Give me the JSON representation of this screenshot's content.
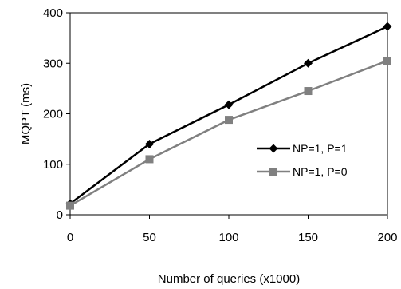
{
  "chart_data": {
    "type": "line",
    "title": "",
    "xlabel": "Number of queries (x1000)",
    "ylabel": "MQPT (ms)",
    "x": [
      0,
      50,
      100,
      150,
      200
    ],
    "xlim": [
      0,
      200
    ],
    "ylim": [
      0,
      400
    ],
    "xticks": [
      "0",
      "50",
      "100",
      "150",
      "200"
    ],
    "yticks": [
      "0",
      "100",
      "200",
      "300",
      "400"
    ],
    "grid": false,
    "legend_position": "right",
    "series": [
      {
        "name": "NP=1, P=1",
        "values": [
          22,
          140,
          218,
          300,
          373
        ],
        "color": "#000000",
        "marker": "diamond"
      },
      {
        "name": "NP=1, P=0",
        "values": [
          18,
          110,
          188,
          245,
          305
        ],
        "color": "#808080",
        "marker": "square"
      }
    ]
  }
}
